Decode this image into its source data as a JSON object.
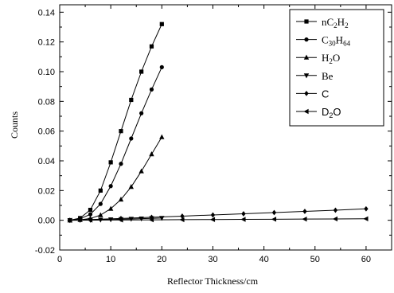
{
  "chart_data": {
    "type": "line",
    "title": "",
    "xlabel": "Reflector Thickness/cm",
    "ylabel": "Counts",
    "xlim": [
      0,
      65
    ],
    "ylim": [
      -0.02,
      0.145
    ],
    "x_ticks": [
      "0",
      "10",
      "20",
      "30",
      "40",
      "50",
      "60"
    ],
    "y_ticks": [
      "-0.02",
      "0.00",
      "0.02",
      "0.04",
      "0.06",
      "0.08",
      "0.10",
      "0.12",
      "0.14"
    ],
    "grid": false,
    "legend_position": "top-right",
    "series": [
      {
        "name": "nC2H2",
        "legend": {
          "parts": [
            {
              "t": "nC"
            },
            {
              "t": "2",
              "sub": true
            },
            {
              "t": "H"
            },
            {
              "t": "2",
              "sub": true
            }
          ],
          "font": "serif"
        },
        "marker": "square",
        "x": [
          2,
          4,
          6,
          8,
          10,
          12,
          14,
          16,
          18,
          20
        ],
        "y": [
          0.0,
          0.0015,
          0.007,
          0.02,
          0.039,
          0.06,
          0.081,
          0.1,
          0.117,
          0.132
        ]
      },
      {
        "name": "C30H64",
        "legend": {
          "parts": [
            {
              "t": "C"
            },
            {
              "t": "30",
              "sub": true
            },
            {
              "t": "H"
            },
            {
              "t": "64",
              "sub": true
            }
          ],
          "font": "serif"
        },
        "marker": "circle",
        "x": [
          2,
          4,
          6,
          8,
          10,
          12,
          14,
          16,
          18,
          20
        ],
        "y": [
          0.0,
          0.001,
          0.004,
          0.011,
          0.023,
          0.038,
          0.055,
          0.072,
          0.088,
          0.103
        ]
      },
      {
        "name": "H2O",
        "legend": {
          "parts": [
            {
              "t": "H"
            },
            {
              "t": "2",
              "sub": true
            },
            {
              "t": "O"
            }
          ],
          "font": "serif"
        },
        "marker": "triangle-up",
        "x": [
          2,
          4,
          6,
          8,
          10,
          12,
          14,
          16,
          18,
          20
        ],
        "y": [
          0.0,
          0.0003,
          0.0012,
          0.0035,
          0.0078,
          0.014,
          0.0225,
          0.033,
          0.0445,
          0.056
        ]
      },
      {
        "name": "Be",
        "legend": {
          "parts": [
            {
              "t": "Be"
            }
          ],
          "font": "serif"
        },
        "marker": "triangle-down",
        "x": [
          2,
          4,
          6,
          8,
          10,
          12,
          14,
          16,
          18,
          20
        ],
        "y": [
          0.0,
          0.0001,
          0.0002,
          0.0003,
          0.0005,
          0.0007,
          0.0009,
          0.0011,
          0.0013,
          0.0015
        ]
      },
      {
        "name": "C",
        "legend": {
          "parts": [
            {
              "t": "C"
            }
          ],
          "font": "sans"
        },
        "marker": "diamond",
        "x": [
          2,
          6,
          12,
          18,
          24,
          30,
          36,
          42,
          48,
          54,
          60
        ],
        "y": [
          0.0,
          0.0005,
          0.0012,
          0.002,
          0.0028,
          0.0036,
          0.0044,
          0.0052,
          0.006,
          0.0068,
          0.0077
        ]
      },
      {
        "name": "D2O",
        "legend": {
          "parts": [
            {
              "t": "D"
            },
            {
              "t": "2",
              "sub": true
            },
            {
              "t": "O"
            }
          ],
          "font": "sans"
        },
        "marker": "left-triangle",
        "x": [
          2,
          6,
          12,
          18,
          24,
          30,
          36,
          42,
          48,
          54,
          60
        ],
        "y": [
          0.0,
          0.0001,
          0.0002,
          0.0003,
          0.0004,
          0.0005,
          0.0006,
          0.0007,
          0.0008,
          0.0009,
          0.001
        ]
      }
    ]
  }
}
